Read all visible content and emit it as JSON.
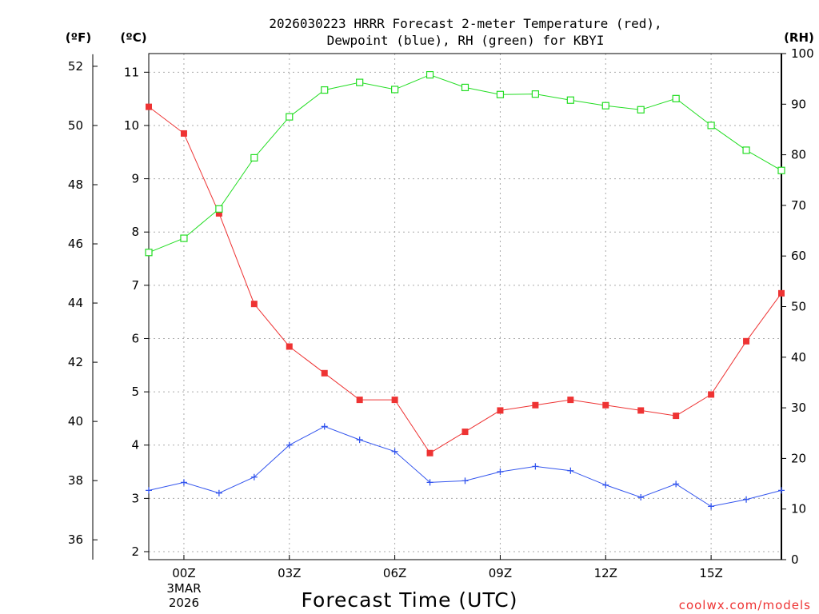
{
  "chart_data": {
    "type": "line",
    "title_line1": "2026030223 HRRR Forecast 2-meter Temperature (red),",
    "title_line2": "Dewpoint (blue), RH (green) for KBYI",
    "xlabel": "Forecast Time (UTC)",
    "units": {
      "fahrenheit": "(ºF)",
      "celsius": "(ºC)",
      "rh": "(RH)"
    },
    "x": [
      -1,
      0,
      1,
      2,
      3,
      4,
      5,
      6,
      7,
      8,
      9,
      10,
      11,
      12,
      13,
      14,
      15,
      16,
      17
    ],
    "xlim": [
      -1,
      17
    ],
    "x_ticks": [
      {
        "x": 0,
        "label": "00Z",
        "sub1": "3MAR",
        "sub2": "2026"
      },
      {
        "x": 3,
        "label": "03Z"
      },
      {
        "x": 6,
        "label": "06Z"
      },
      {
        "x": 9,
        "label": "09Z"
      },
      {
        "x": 12,
        "label": "12Z"
      },
      {
        "x": 15,
        "label": "15Z"
      }
    ],
    "celsius_axis": {
      "range": [
        1.85,
        11.35
      ],
      "ticks": [
        "2",
        "3",
        "4",
        "5",
        "6",
        "7",
        "8",
        "9",
        "10",
        "11"
      ]
    },
    "fahrenheit_axis": {
      "ticks": [
        "36",
        "38",
        "40",
        "42",
        "44",
        "46",
        "48",
        "50",
        "52"
      ]
    },
    "rh_axis": {
      "range": [
        0,
        100
      ],
      "ticks": [
        "0",
        "10",
        "20",
        "30",
        "40",
        "50",
        "60",
        "70",
        "80",
        "90",
        "100"
      ]
    },
    "series": [
      {
        "name": "Temperature",
        "axis": "celsius",
        "color": "#ee3333",
        "marker": "filled-square",
        "values": [
          10.35,
          9.85,
          8.35,
          6.65,
          5.85,
          5.35,
          4.85,
          4.85,
          3.85,
          4.25,
          4.65,
          4.75,
          4.85,
          4.75,
          4.65,
          4.55,
          4.95,
          5.95,
          6.85
        ]
      },
      {
        "name": "Dewpoint",
        "axis": "celsius",
        "color": "#3355ee",
        "marker": "plus",
        "values": [
          3.15,
          3.3,
          3.1,
          3.4,
          4.0,
          4.35,
          4.1,
          3.88,
          3.3,
          3.33,
          3.5,
          3.6,
          3.52,
          3.25,
          3.02,
          3.27,
          2.85,
          2.98,
          3.15
        ]
      },
      {
        "name": "RH",
        "axis": "rh",
        "color": "#22dd22",
        "marker": "open-square",
        "values": [
          60.7,
          63.5,
          69.3,
          79.4,
          87.5,
          92.8,
          94.3,
          92.9,
          95.8,
          93.3,
          91.9,
          92.0,
          90.8,
          89.7,
          88.9,
          91.1,
          85.8,
          80.9,
          76.9
        ]
      }
    ],
    "grid": true
  },
  "watermark": "coolwx.com/models"
}
